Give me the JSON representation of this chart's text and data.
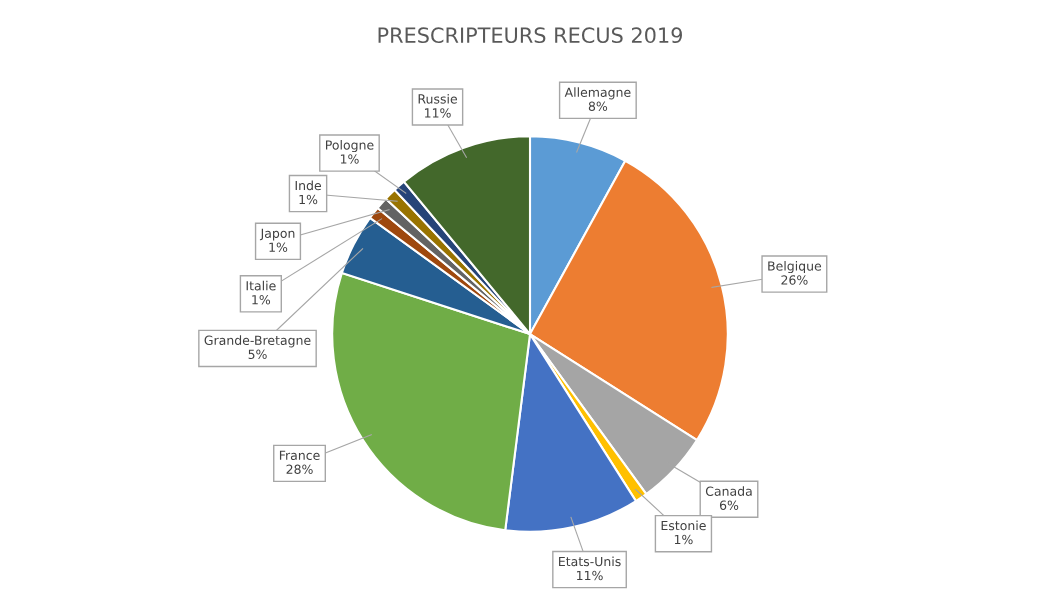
{
  "chart_data": {
    "type": "pie",
    "title": "PRESCRIPTEURS RECUS 2019",
    "categories": [
      "Allemagne",
      "Belgique",
      "Canada",
      "Estonie",
      "Etats-Unis",
      "France",
      "Grande-Bretagne",
      "Italie",
      "Japon",
      "Inde",
      "Pologne",
      "Russie"
    ],
    "values": [
      8,
      26,
      6,
      1,
      11,
      28,
      5,
      1,
      1,
      1,
      1,
      11
    ],
    "value_labels": [
      "8%",
      "26%",
      "6%",
      "1%",
      "11%",
      "28%",
      "5%",
      "1%",
      "1%",
      "1%",
      "1%",
      "11%"
    ],
    "colors": [
      "#5b9bd5",
      "#ed7d31",
      "#a5a5a5",
      "#ffc000",
      "#4472c4",
      "#70ad47",
      "#255e91",
      "#9e480e",
      "#636363",
      "#997300",
      "#264478",
      "#43682b"
    ]
  }
}
